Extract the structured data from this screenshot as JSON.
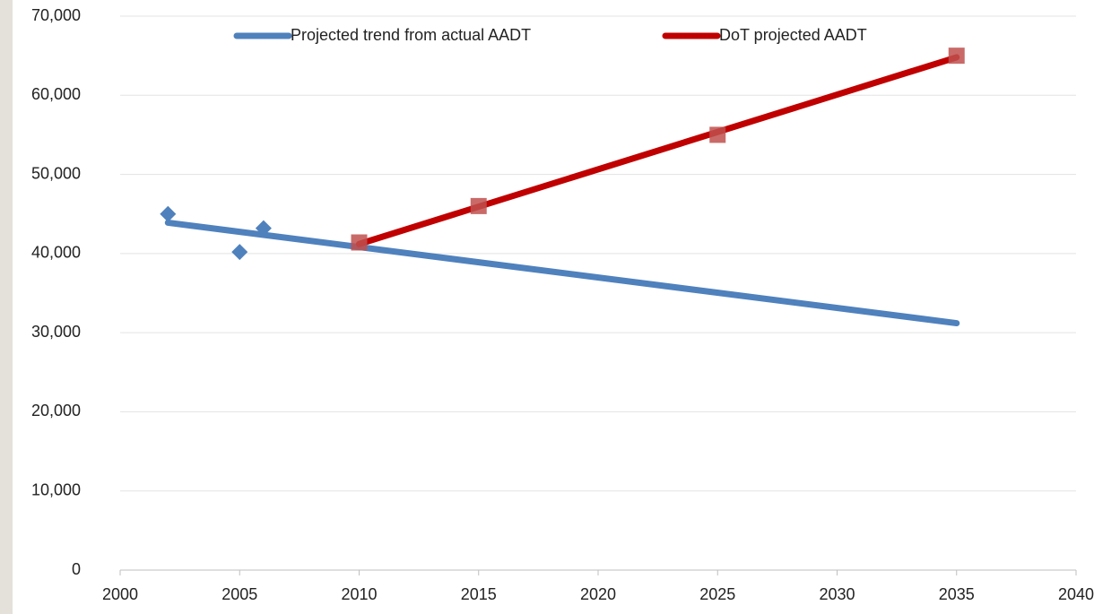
{
  "chart_data": {
    "type": "line",
    "series": [
      {
        "name": "Projected trend from actual AADT",
        "color": "#4f81bd",
        "x": [
          2002,
          2035
        ],
        "values": [
          43900,
          31200
        ]
      },
      {
        "name": "DoT projected AADT",
        "color": "#c00000",
        "x": [
          2010,
          2035
        ],
        "values": [
          41200,
          64800
        ]
      },
      {
        "color": "#4f81bd",
        "mode": "markers",
        "marker": "diamond",
        "x": [
          2002,
          2005,
          2006
        ],
        "values": [
          45000,
          40200,
          43200
        ]
      },
      {
        "color": "#c0504d",
        "mode": "markers",
        "marker": "square",
        "x": [
          2010,
          2015,
          2025,
          2035
        ],
        "values": [
          41400,
          46000,
          55000,
          65000
        ]
      }
    ],
    "xlim": [
      2000,
      2040
    ],
    "xticks": [
      2000,
      2005,
      2010,
      2015,
      2020,
      2025,
      2030,
      2035,
      2040
    ],
    "ylim": [
      0,
      70000
    ],
    "yticks": [
      0,
      {
        "value": 10000,
        "label": "10,000"
      },
      {
        "value": 20000,
        "label": "20,000"
      },
      {
        "value": 30000,
        "label": "30,000"
      },
      {
        "value": 40000,
        "label": "40,000"
      },
      {
        "value": 50000,
        "label": "50,000"
      },
      {
        "value": 60000,
        "label": "60,000"
      },
      {
        "value": 70000,
        "label": "70,000"
      }
    ],
    "grid": true,
    "legend": "top"
  }
}
